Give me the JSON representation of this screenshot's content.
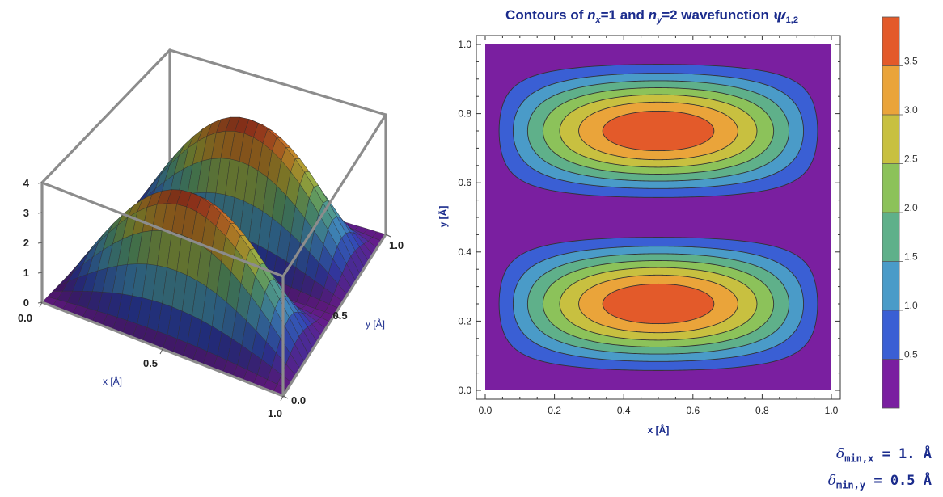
{
  "chart_data": [
    {
      "type": "surface",
      "function": "4 * sin(pi*x) * sin(2*pi*y)^2",
      "x": {
        "label": "x [Å]",
        "range": [
          0,
          1
        ],
        "ticks": [
          "0.0",
          "0.5",
          "1.0"
        ]
      },
      "y": {
        "label": "y [Å]",
        "range": [
          0,
          1
        ],
        "ticks": [
          "0.0",
          "0.5",
          "1.0"
        ]
      },
      "z": {
        "range": [
          0,
          4
        ],
        "ticks": [
          "0",
          "1",
          "2",
          "3",
          "4"
        ]
      },
      "peaks": [
        {
          "x": 0.5,
          "y": 0.25,
          "z": 4
        },
        {
          "x": 0.5,
          "y": 0.75,
          "z": 4
        }
      ]
    },
    {
      "type": "contour",
      "title_parts": {
        "pre": "Contours of ",
        "nx": "n",
        "nx_sub": "x",
        "mid1": "=1 and ",
        "ny": "n",
        "ny_sub": "y",
        "mid2": "=2 wavefunction ",
        "psi": "ψ",
        "psi_sub": "1,2"
      },
      "xlabel": "x [Å]",
      "ylabel": "y [Å]",
      "xlim": [
        0,
        1
      ],
      "ylim": [
        0,
        1
      ],
      "xticks": [
        "0.0",
        "0.2",
        "0.4",
        "0.6",
        "0.8",
        "1.0"
      ],
      "yticks": [
        "0.0",
        "0.2",
        "0.4",
        "0.6",
        "0.8",
        "1.0"
      ],
      "levels": [
        0.5,
        1.0,
        1.5,
        2.0,
        2.5,
        3.0,
        3.5
      ],
      "colorbar_labels": [
        "0.5",
        "1.0",
        "1.5",
        "2.0",
        "2.5",
        "3.0",
        "3.5"
      ],
      "colors": [
        "#7a1fa0",
        "#3a5fd4",
        "#4a9bc8",
        "#5fb08a",
        "#8cc25a",
        "#c8c040",
        "#eaa43a",
        "#e35a2a"
      ],
      "peaks": [
        {
          "x": 0.5,
          "y": 0.25,
          "value": 4
        },
        {
          "x": 0.5,
          "y": 0.75,
          "value": 4
        }
      ]
    }
  ],
  "info": {
    "delta": "δ",
    "line1_sub": "min,x",
    "line1_value": "= 1. Å",
    "line2_sub": "min,y",
    "line2_value": "= 0.5 Å"
  }
}
